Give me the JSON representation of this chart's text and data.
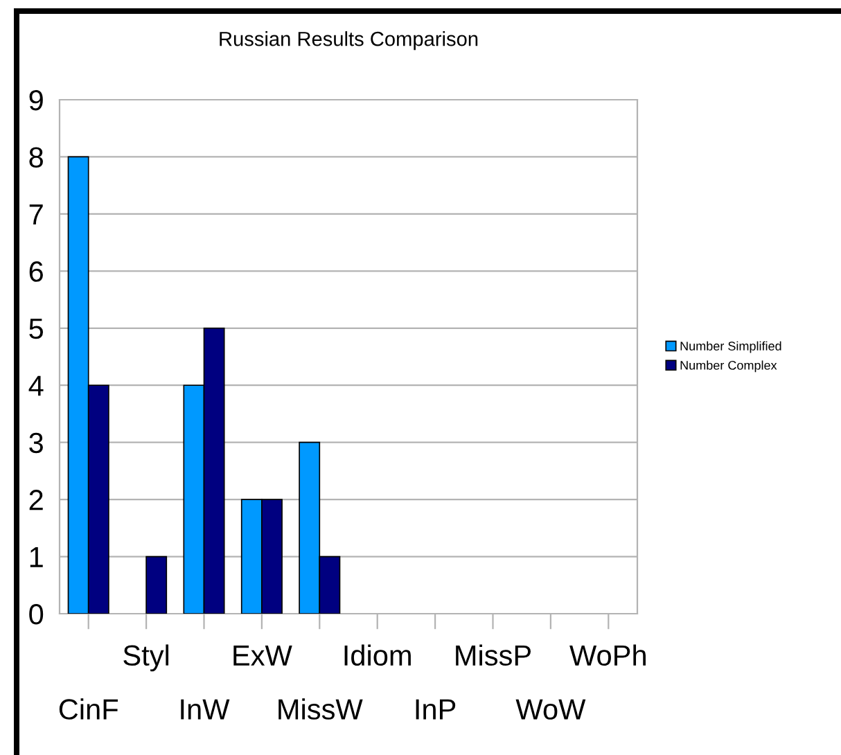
{
  "chart_data": {
    "type": "bar",
    "title": "Russian Results Comparison",
    "categories": [
      "CinF",
      "Styl",
      "InW",
      "ExW",
      "MissW",
      "Idiom",
      "InP",
      "MissP",
      "WoW",
      "WoPh"
    ],
    "series": [
      {
        "name": "Number Simplified",
        "color": "#0099ff",
        "values": [
          8,
          0,
          4,
          2,
          3,
          0,
          0,
          0,
          0,
          0
        ]
      },
      {
        "name": "Number Complex",
        "color": "#000080",
        "values": [
          4,
          1,
          5,
          2,
          1,
          0,
          0,
          0,
          0,
          0
        ]
      }
    ],
    "ylim": [
      0,
      9
    ],
    "yticks": [
      0,
      1,
      2,
      3,
      4,
      5,
      6,
      7,
      8,
      9
    ],
    "grid": "y",
    "legend": "right"
  }
}
